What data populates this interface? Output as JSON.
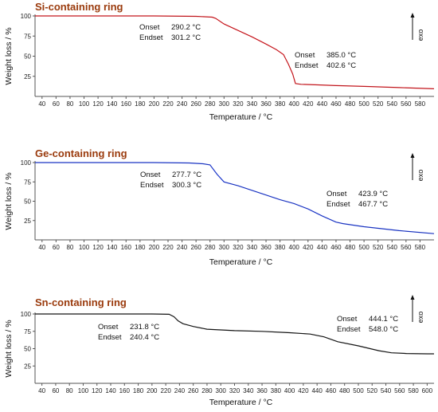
{
  "chart_data": [
    {
      "type": "line",
      "title": "Si-containing ring",
      "xlabel": "Temperature / °C",
      "ylabel": "Weight loss / %",
      "exo_label": "exo",
      "xlim": [
        30,
        600
      ],
      "ylim": [
        0,
        100
      ],
      "x_ticks": [
        40,
        60,
        80,
        100,
        120,
        140,
        160,
        180,
        200,
        220,
        240,
        260,
        280,
        300,
        320,
        340,
        360,
        380,
        400,
        420,
        440,
        460,
        480,
        500,
        520,
        540,
        560,
        580
      ],
      "x_tick_labels": [
        "40",
        "60",
        "80",
        "100",
        "120",
        "140",
        "160",
        "180",
        "200",
        "220",
        "240",
        "260",
        "280",
        "300",
        "320",
        "340",
        "360",
        "380",
        "400",
        "420",
        "440",
        "460",
        "480",
        "500",
        "520",
        "540",
        "560",
        "580"
      ],
      "y_ticks": [
        25,
        50,
        75,
        100
      ],
      "y_tick_labels": [
        "25",
        "50",
        "75",
        "100"
      ],
      "color": "#e8141c",
      "series": [
        {
          "x": [
            30,
            100,
            200,
            260,
            283,
            288,
            300,
            320,
            340,
            360,
            375,
            385,
            392,
            398,
            402,
            410,
            430,
            460,
            500,
            550,
            600
          ],
          "y": [
            100,
            100,
            100,
            99.5,
            98.5,
            97,
            90,
            82,
            74,
            65,
            58,
            52,
            40,
            28,
            16,
            15,
            14.5,
            13.5,
            12.5,
            11,
            9.5
          ]
        }
      ],
      "annotations": [
        {
          "onset_label": "Onset",
          "onset_value": "290.2 °C",
          "endset_label": "Endset",
          "endset_value": "301.2 °C"
        },
        {
          "onset_label": "Onset",
          "onset_value": "385.0 °C",
          "endset_label": "Endset",
          "endset_value": "402.6 °C"
        }
      ]
    },
    {
      "type": "line",
      "title": "Ge-containing ring",
      "xlabel": "Temperature / °C",
      "ylabel": "Weight loss / %",
      "exo_label": "exo",
      "xlim": [
        30,
        600
      ],
      "ylim": [
        0,
        100
      ],
      "x_ticks": [
        40,
        60,
        80,
        100,
        120,
        140,
        160,
        180,
        200,
        220,
        240,
        260,
        280,
        300,
        320,
        340,
        360,
        380,
        400,
        420,
        440,
        460,
        480,
        500,
        520,
        540,
        560,
        580
      ],
      "x_tick_labels": [
        "40",
        "60",
        "80",
        "100",
        "120",
        "140",
        "160",
        "180",
        "200",
        "220",
        "240",
        "260",
        "280",
        "300",
        "320",
        "340",
        "360",
        "380",
        "400",
        "420",
        "440",
        "460",
        "480",
        "500",
        "520",
        "540",
        "560",
        "580"
      ],
      "y_ticks": [
        25,
        50,
        75,
        100
      ],
      "y_tick_labels": [
        "25",
        "50",
        "75",
        "100"
      ],
      "color": "#1a3ae8",
      "series": [
        {
          "x": [
            30,
            100,
            200,
            250,
            270,
            280,
            290,
            300,
            320,
            350,
            380,
            400,
            420,
            440,
            460,
            470,
            500,
            550,
            600
          ],
          "y": [
            100,
            100,
            100,
            99.5,
            98.5,
            97,
            85,
            75,
            70,
            61,
            52,
            47,
            40,
            31,
            23,
            21,
            17,
            12,
            8
          ]
        }
      ],
      "annotations": [
        {
          "onset_label": "Onset",
          "onset_value": "277.7 °C",
          "endset_label": "Endset",
          "endset_value": "300.3 °C"
        },
        {
          "onset_label": "Onset",
          "onset_value": "423.9 °C",
          "endset_label": "Endset",
          "endset_value": "467.7 °C"
        }
      ]
    },
    {
      "type": "line",
      "title": "Sn-containing ring",
      "xlabel": "Temperature / °C",
      "ylabel": "Weight loss / %",
      "exo_label": "exo",
      "xlim": [
        30,
        610
      ],
      "ylim": [
        0,
        100
      ],
      "x_ticks": [
        40,
        60,
        80,
        100,
        120,
        140,
        160,
        180,
        200,
        220,
        240,
        260,
        280,
        300,
        320,
        340,
        360,
        380,
        400,
        420,
        440,
        460,
        480,
        500,
        520,
        540,
        560,
        580,
        600
      ],
      "x_tick_labels": [
        "40",
        "60",
        "80",
        "100",
        "120",
        "140",
        "160",
        "180",
        "200",
        "220",
        "240",
        "260",
        "280",
        "300",
        "320",
        "340",
        "360",
        "380",
        "400",
        "420",
        "440",
        "460",
        "480",
        "500",
        "520",
        "540",
        "560",
        "580",
        "600"
      ],
      "y_ticks": [
        25,
        50,
        75,
        100
      ],
      "y_tick_labels": [
        "25",
        "50",
        "75",
        "100"
      ],
      "color": "#111111",
      "series": [
        {
          "x": [
            30,
            100,
            200,
            225,
            232,
            238,
            245,
            260,
            280,
            320,
            360,
            400,
            430,
            450,
            470,
            500,
            530,
            548,
            570,
            600,
            610
          ],
          "y": [
            100,
            100,
            100,
            99.5,
            96,
            90,
            86,
            82,
            78,
            76,
            75,
            73,
            71,
            67,
            60,
            54,
            47,
            44,
            43,
            42.5,
            42.5
          ]
        }
      ],
      "annotations": [
        {
          "onset_label": "Onset",
          "onset_value": "231.8 °C",
          "endset_label": "Endset",
          "endset_value": "240.4 °C"
        },
        {
          "onset_label": "Onset",
          "onset_value": "444.1 °C",
          "endset_label": "Endset",
          "endset_value": "548.0 °C"
        }
      ]
    }
  ]
}
